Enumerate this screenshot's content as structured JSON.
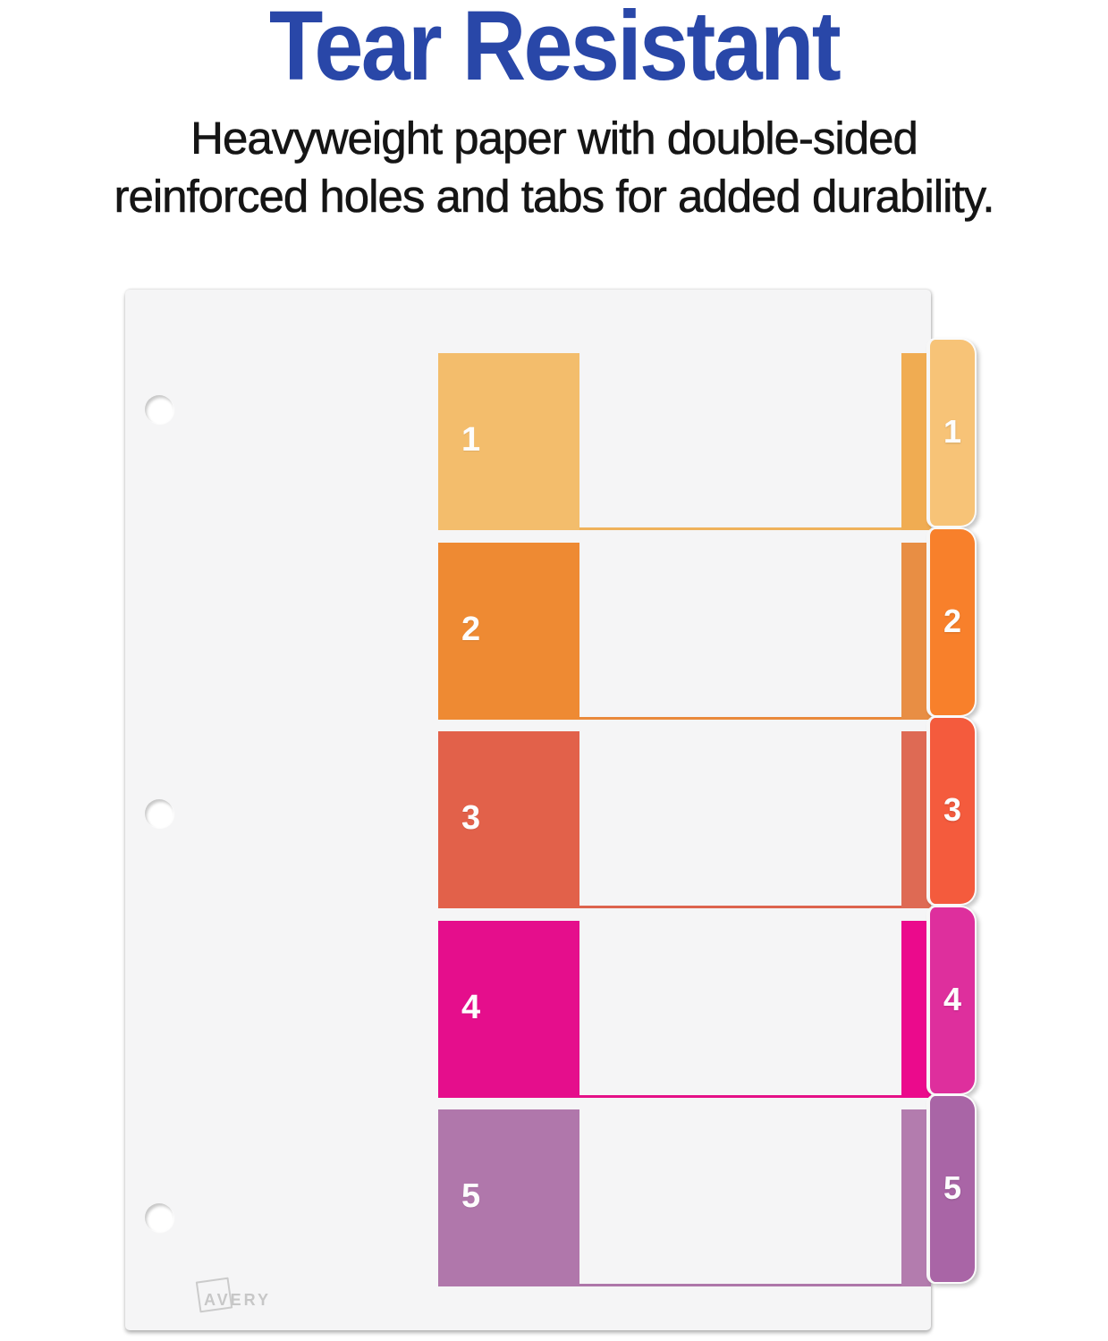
{
  "header": {
    "title": "Tear Resistant",
    "subtitle_line1": "Heavyweight paper with double-sided",
    "subtitle_line2": "reinforced holes and tabs for added durability.",
    "title_color": "#2947a8",
    "subtitle_color": "#151515"
  },
  "divider": {
    "hole_count": 3,
    "page_color": "#f5f5f6",
    "sections": [
      {
        "label": "1",
        "block_color": "#f3bd6c",
        "strip_color": "#f0ac52",
        "tab_color": "#f7c377",
        "rule_color": "#efb25b"
      },
      {
        "label": "2",
        "block_color": "#ee8a33",
        "strip_color": "#e88e44",
        "tab_color": "#f8802b",
        "rule_color": "#e9893b"
      },
      {
        "label": "3",
        "block_color": "#e2614a",
        "strip_color": "#de6a54",
        "tab_color": "#f45b3d",
        "rule_color": "#dd644e"
      },
      {
        "label": "4",
        "block_color": "#e50e8c",
        "strip_color": "#eb0a8c",
        "tab_color": "#de2f9d",
        "rule_color": "#e51087"
      },
      {
        "label": "5",
        "block_color": "#b077ab",
        "strip_color": "#b37cae",
        "tab_color": "#a965a6",
        "rule_color": "#ae76a9"
      }
    ]
  },
  "brand": {
    "logo_text": "AVERY"
  }
}
